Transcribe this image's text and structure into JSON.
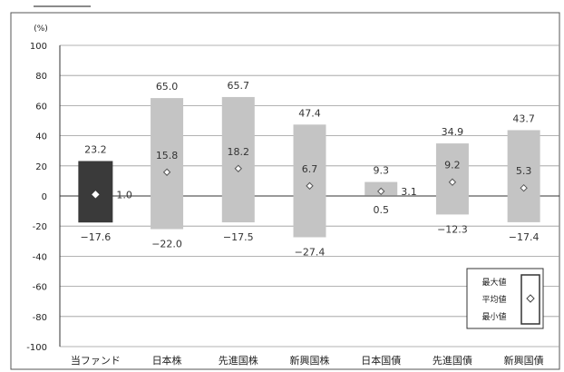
{
  "chart_data": {
    "type": "bar",
    "title": "",
    "xlabel": "",
    "ylabel": "(%)",
    "ylim": [
      -100,
      100
    ],
    "yticks": [
      100,
      80,
      60,
      40,
      20,
      0,
      -20,
      -40,
      -60,
      -80,
      -100
    ],
    "grid": true,
    "categories": [
      "当ファンド",
      "日本株",
      "先進国株",
      "新興国株",
      "日本国債",
      "先進国債",
      "新興国債"
    ],
    "series": [
      {
        "name": "最大値",
        "values": [
          23.2,
          65.0,
          65.7,
          47.4,
          9.3,
          34.9,
          43.7
        ]
      },
      {
        "name": "平均値",
        "values": [
          1.0,
          15.8,
          18.2,
          6.7,
          3.1,
          9.2,
          5.3
        ]
      },
      {
        "name": "最小値",
        "values": [
          -17.6,
          -22.0,
          -17.5,
          -27.4,
          0.5,
          -12.3,
          -17.4
        ]
      }
    ],
    "max_labels": [
      "23.2",
      "65.0",
      "65.7",
      "47.4",
      "9.3",
      "34.9",
      "43.7"
    ],
    "avg_labels": [
      "1.0",
      "15.8",
      "18.2",
      "6.7",
      "3.1",
      "9.2",
      "5.3"
    ],
    "min_labels": [
      "−17.6",
      "−22.0",
      "−17.5",
      "−27.4",
      "0.5",
      "−12.3",
      "−17.4"
    ],
    "highlight_category": "当ファンド",
    "colors": {
      "highlight": "#3a3a3a",
      "bar": "#c4c4c4",
      "grid": "#9a9a9a",
      "axis": "#333333"
    },
    "legend": {
      "placement": "bottom-right",
      "items": [
        "最大値",
        "平均値",
        "最小値"
      ],
      "marker": "diamond"
    }
  }
}
